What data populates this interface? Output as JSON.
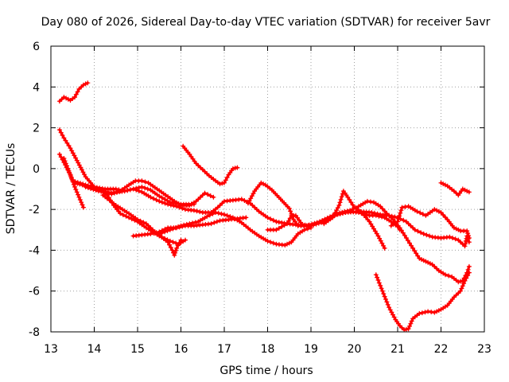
{
  "chart_data": {
    "type": "scatter",
    "title": "Day 080 of 2026, Sidereal Day-to-day VTEC variation (SDTVAR) for receiver 5avr",
    "xlabel": "GPS time / hours",
    "ylabel": "SDTVAR / TECUs",
    "xlim": [
      13,
      23
    ],
    "ylim": [
      -8,
      6
    ],
    "xticks": [
      "13",
      "14",
      "15",
      "16",
      "17",
      "18",
      "19",
      "20",
      "21",
      "22",
      "23"
    ],
    "yticks": [
      "6",
      "4",
      "2",
      "0",
      "-2",
      "-4",
      "-6",
      "-8"
    ],
    "grid": true,
    "marker": "+",
    "color": "#ff0000",
    "series": [
      {
        "name": "segment-1",
        "points": [
          [
            13.2,
            3.3
          ],
          [
            13.3,
            3.5
          ],
          [
            13.45,
            3.35
          ],
          [
            13.55,
            3.5
          ],
          [
            13.65,
            3.9
          ],
          [
            13.75,
            4.1
          ],
          [
            13.85,
            4.2
          ]
        ]
      },
      {
        "name": "segment-2",
        "points": [
          [
            13.2,
            1.9
          ],
          [
            13.3,
            1.5
          ],
          [
            13.45,
            1.0
          ],
          [
            13.6,
            0.4
          ],
          [
            13.8,
            -0.4
          ],
          [
            14.0,
            -0.9
          ],
          [
            14.25,
            -1.0
          ],
          [
            14.5,
            -1.0
          ],
          [
            14.7,
            -1.1
          ],
          [
            14.9,
            -1.0
          ],
          [
            15.1,
            -1.15
          ],
          [
            15.3,
            -1.4
          ],
          [
            15.5,
            -1.6
          ],
          [
            15.7,
            -1.75
          ],
          [
            15.9,
            -1.85
          ],
          [
            16.1,
            -2.0
          ],
          [
            16.3,
            -2.05
          ],
          [
            16.5,
            -2.15
          ],
          [
            16.7,
            -2.15
          ],
          [
            16.85,
            -1.9
          ],
          [
            17.0,
            -1.6
          ],
          [
            17.2,
            -1.55
          ],
          [
            17.4,
            -1.5
          ],
          [
            17.6,
            -1.7
          ],
          [
            17.8,
            -2.1
          ],
          [
            18.0,
            -2.4
          ],
          [
            18.2,
            -2.6
          ],
          [
            18.45,
            -2.7
          ],
          [
            18.65,
            -2.75
          ],
          [
            18.9,
            -2.8
          ],
          [
            19.2,
            -2.6
          ],
          [
            19.5,
            -2.3
          ],
          [
            19.8,
            -2.15
          ],
          [
            20.1,
            -2.1
          ],
          [
            20.4,
            -2.15
          ],
          [
            20.6,
            -2.25
          ],
          [
            20.8,
            -2.3
          ],
          [
            21.0,
            -2.4
          ],
          [
            21.2,
            -2.6
          ],
          [
            21.4,
            -3.0
          ],
          [
            21.6,
            -3.2
          ],
          [
            21.8,
            -3.35
          ],
          [
            22.0,
            -3.4
          ],
          [
            22.2,
            -3.35
          ],
          [
            22.4,
            -3.5
          ],
          [
            22.55,
            -3.8
          ],
          [
            22.6,
            -3.3
          ],
          [
            22.65,
            -3.6
          ]
        ]
      },
      {
        "name": "segment-3",
        "points": [
          [
            13.2,
            0.7
          ],
          [
            13.3,
            0.3
          ],
          [
            13.45,
            -0.3
          ],
          [
            13.55,
            -0.9
          ],
          [
            13.65,
            -1.4
          ],
          [
            13.75,
            -1.9
          ]
        ]
      },
      {
        "name": "segment-4",
        "points": [
          [
            13.3,
            0.5
          ],
          [
            13.5,
            -0.6
          ],
          [
            13.8,
            -0.8
          ],
          [
            14.1,
            -1.0
          ],
          [
            14.3,
            -1.3
          ],
          [
            14.45,
            -1.8
          ],
          [
            14.6,
            -2.2
          ],
          [
            14.8,
            -2.4
          ],
          [
            15.0,
            -2.6
          ],
          [
            15.2,
            -2.9
          ],
          [
            15.5,
            -3.3
          ],
          [
            15.75,
            -3.55
          ],
          [
            15.95,
            -3.7
          ],
          [
            16.1,
            -3.5
          ]
        ]
      },
      {
        "name": "segment-5",
        "points": [
          [
            13.55,
            -0.7
          ],
          [
            13.9,
            -0.9
          ],
          [
            14.2,
            -1.1
          ],
          [
            14.4,
            -1.25
          ],
          [
            14.6,
            -1.1
          ],
          [
            14.8,
            -0.8
          ],
          [
            14.95,
            -0.6
          ],
          [
            15.1,
            -0.6
          ],
          [
            15.25,
            -0.7
          ],
          [
            15.45,
            -1.0
          ],
          [
            15.65,
            -1.3
          ],
          [
            15.85,
            -1.6
          ],
          [
            16.0,
            -1.8
          ],
          [
            16.2,
            -1.8
          ],
          [
            16.35,
            -1.6
          ],
          [
            16.55,
            -1.2
          ],
          [
            16.75,
            -1.4
          ]
        ]
      },
      {
        "name": "segment-6",
        "points": [
          [
            13.8,
            -0.9
          ],
          [
            14.1,
            -1.1
          ],
          [
            14.4,
            -1.2
          ],
          [
            14.7,
            -1.1
          ],
          [
            14.9,
            -1.0
          ],
          [
            15.1,
            -0.9
          ],
          [
            15.3,
            -1.05
          ],
          [
            15.5,
            -1.35
          ],
          [
            15.75,
            -1.65
          ],
          [
            16.0,
            -1.75
          ],
          [
            16.3,
            -1.75
          ]
        ]
      },
      {
        "name": "segment-7",
        "points": [
          [
            14.2,
            -1.3
          ],
          [
            14.5,
            -1.8
          ],
          [
            14.8,
            -2.2
          ],
          [
            15.0,
            -2.5
          ],
          [
            15.2,
            -2.7
          ],
          [
            15.4,
            -3.1
          ],
          [
            15.55,
            -3.35
          ],
          [
            15.7,
            -3.6
          ],
          [
            15.8,
            -4.0
          ],
          [
            15.85,
            -4.25
          ],
          [
            15.9,
            -3.9
          ],
          [
            16.0,
            -3.5
          ]
        ]
      },
      {
        "name": "segment-8",
        "points": [
          [
            14.9,
            -3.3
          ],
          [
            15.1,
            -3.25
          ],
          [
            15.3,
            -3.2
          ],
          [
            15.5,
            -3.1
          ],
          [
            15.7,
            -2.9
          ],
          [
            15.9,
            -2.9
          ],
          [
            16.1,
            -2.8
          ],
          [
            16.3,
            -2.8
          ],
          [
            16.5,
            -2.75
          ],
          [
            16.7,
            -2.7
          ],
          [
            16.9,
            -2.55
          ],
          [
            17.1,
            -2.5
          ],
          [
            17.3,
            -2.45
          ],
          [
            17.5,
            -2.4
          ]
        ]
      },
      {
        "name": "segment-9",
        "points": [
          [
            16.05,
            1.1
          ],
          [
            16.2,
            0.7
          ],
          [
            16.35,
            0.25
          ],
          [
            16.5,
            -0.05
          ],
          [
            16.65,
            -0.35
          ],
          [
            16.8,
            -0.6
          ],
          [
            16.9,
            -0.75
          ],
          [
            17.0,
            -0.7
          ],
          [
            17.1,
            -0.3
          ],
          [
            17.2,
            0.0
          ],
          [
            17.3,
            0.05
          ]
        ]
      },
      {
        "name": "segment-10",
        "points": [
          [
            15.5,
            -3.2
          ],
          [
            15.75,
            -3.0
          ],
          [
            16.0,
            -2.8
          ],
          [
            16.2,
            -2.7
          ],
          [
            16.4,
            -2.6
          ],
          [
            16.6,
            -2.35
          ],
          [
            16.8,
            -2.15
          ],
          [
            17.0,
            -2.25
          ],
          [
            17.2,
            -2.4
          ],
          [
            17.4,
            -2.65
          ],
          [
            17.6,
            -3.0
          ],
          [
            17.8,
            -3.3
          ],
          [
            18.0,
            -3.55
          ],
          [
            18.2,
            -3.7
          ],
          [
            18.4,
            -3.75
          ],
          [
            18.55,
            -3.6
          ],
          [
            18.7,
            -3.2
          ],
          [
            18.85,
            -3.0
          ],
          [
            19.0,
            -2.9
          ]
        ]
      },
      {
        "name": "segment-11",
        "points": [
          [
            17.55,
            -1.7
          ],
          [
            17.7,
            -1.1
          ],
          [
            17.85,
            -0.7
          ],
          [
            17.95,
            -0.8
          ],
          [
            18.1,
            -1.05
          ],
          [
            18.3,
            -1.5
          ],
          [
            18.5,
            -1.95
          ],
          [
            18.6,
            -2.5
          ],
          [
            18.7,
            -2.8
          ],
          [
            18.9,
            -2.8
          ]
        ]
      },
      {
        "name": "segment-12",
        "points": [
          [
            18.0,
            -3.0
          ],
          [
            18.2,
            -3.0
          ],
          [
            18.45,
            -2.7
          ],
          [
            18.55,
            -2.3
          ],
          [
            18.65,
            -2.3
          ],
          [
            18.8,
            -2.75
          ],
          [
            19.0,
            -2.8
          ],
          [
            19.3,
            -2.6
          ],
          [
            19.6,
            -2.25
          ],
          [
            19.85,
            -2.1
          ],
          [
            20.1,
            -2.15
          ],
          [
            20.35,
            -2.3
          ],
          [
            20.5,
            -2.3
          ],
          [
            20.7,
            -2.4
          ],
          [
            20.85,
            -2.6
          ],
          [
            21.0,
            -2.85
          ],
          [
            21.05,
            -3.0
          ]
        ]
      },
      {
        "name": "segment-13",
        "points": [
          [
            19.3,
            -2.7
          ],
          [
            19.5,
            -2.4
          ],
          [
            19.65,
            -1.8
          ],
          [
            19.75,
            -1.1
          ],
          [
            19.85,
            -1.4
          ],
          [
            20.0,
            -1.9
          ],
          [
            20.15,
            -2.1
          ],
          [
            20.35,
            -2.6
          ],
          [
            20.55,
            -3.3
          ],
          [
            20.7,
            -3.9
          ]
        ]
      },
      {
        "name": "segment-14",
        "points": [
          [
            19.6,
            -2.2
          ],
          [
            19.9,
            -2.05
          ],
          [
            20.1,
            -1.85
          ],
          [
            20.3,
            -1.6
          ],
          [
            20.45,
            -1.65
          ],
          [
            20.6,
            -1.85
          ],
          [
            20.75,
            -2.2
          ],
          [
            20.9,
            -2.5
          ],
          [
            21.05,
            -2.9
          ],
          [
            21.2,
            -3.4
          ],
          [
            21.35,
            -3.9
          ],
          [
            21.5,
            -4.4
          ],
          [
            21.65,
            -4.55
          ],
          [
            21.8,
            -4.7
          ],
          [
            21.95,
            -5.0
          ],
          [
            22.1,
            -5.2
          ],
          [
            22.25,
            -5.3
          ],
          [
            22.4,
            -5.55
          ],
          [
            22.5,
            -5.5
          ],
          [
            22.6,
            -5.1
          ],
          [
            22.65,
            -4.8
          ]
        ]
      },
      {
        "name": "segment-15",
        "points": [
          [
            20.5,
            -5.2
          ],
          [
            20.65,
            -6.0
          ],
          [
            20.8,
            -6.8
          ],
          [
            20.95,
            -7.4
          ],
          [
            21.05,
            -7.7
          ],
          [
            21.15,
            -7.9
          ],
          [
            21.25,
            -7.85
          ],
          [
            21.35,
            -7.35
          ],
          [
            21.5,
            -7.1
          ],
          [
            21.7,
            -7.0
          ],
          [
            21.85,
            -7.05
          ],
          [
            22.0,
            -6.9
          ],
          [
            22.15,
            -6.7
          ],
          [
            22.3,
            -6.3
          ],
          [
            22.45,
            -6.0
          ],
          [
            22.55,
            -5.5
          ],
          [
            22.65,
            -5.1
          ]
        ]
      },
      {
        "name": "segment-16",
        "points": [
          [
            20.85,
            -2.8
          ],
          [
            21.0,
            -2.6
          ],
          [
            21.1,
            -1.9
          ],
          [
            21.25,
            -1.85
          ],
          [
            21.45,
            -2.1
          ],
          [
            21.65,
            -2.3
          ],
          [
            21.85,
            -2.0
          ],
          [
            22.0,
            -2.15
          ],
          [
            22.15,
            -2.5
          ],
          [
            22.3,
            -2.9
          ],
          [
            22.45,
            -3.05
          ],
          [
            22.6,
            -3.05
          ],
          [
            22.65,
            -3.4
          ]
        ]
      },
      {
        "name": "segment-17",
        "points": [
          [
            22.0,
            -0.7
          ],
          [
            22.15,
            -0.85
          ],
          [
            22.3,
            -1.1
          ],
          [
            22.4,
            -1.3
          ],
          [
            22.5,
            -1.0
          ],
          [
            22.65,
            -1.15
          ]
        ]
      }
    ]
  }
}
